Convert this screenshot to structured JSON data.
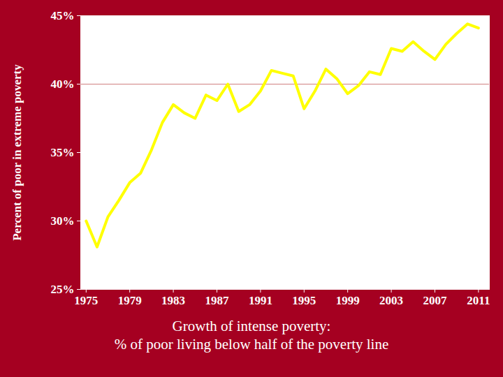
{
  "chart_data": {
    "type": "line",
    "title": "Growth of intense poverty:",
    "subtitle": "% of poor living below half of the poverty line",
    "y_label": "Percent of poor in extreme poverty",
    "x": [
      1975,
      1976,
      1977,
      1978,
      1979,
      1980,
      1981,
      1982,
      1983,
      1984,
      1985,
      1986,
      1987,
      1988,
      1989,
      1990,
      1991,
      1992,
      1993,
      1994,
      1995,
      1996,
      1997,
      1998,
      1999,
      2000,
      2001,
      2002,
      2003,
      2004,
      2005,
      2006,
      2007,
      2008,
      2009,
      2010,
      2011
    ],
    "values": [
      30.0,
      28.1,
      30.3,
      31.5,
      32.8,
      33.5,
      35.2,
      37.2,
      38.5,
      37.9,
      37.5,
      39.2,
      38.8,
      40.0,
      38.0,
      38.5,
      39.5,
      41.0,
      40.8,
      40.6,
      38.2,
      39.5,
      41.1,
      40.4,
      39.3,
      39.9,
      40.9,
      40.7,
      42.6,
      42.4,
      43.1,
      42.4,
      41.8,
      42.9,
      43.7,
      44.4,
      44.1
    ],
    "color": "#ffff00",
    "xlim": [
      1974.5,
      2012
    ],
    "xticks": [
      1975,
      1979,
      1983,
      1987,
      1991,
      1995,
      1999,
      2003,
      2007,
      2011
    ],
    "ylim": [
      25,
      45
    ],
    "yticks": [
      {
        "value": 25,
        "label": "25%"
      },
      {
        "value": 30,
        "label": "30%"
      },
      {
        "value": 35,
        "label": "35%"
      },
      {
        "value": 40,
        "label": "40%"
      },
      {
        "value": 45,
        "label": "45%"
      }
    ],
    "reference_lines": [
      40
    ],
    "grid": false
  }
}
